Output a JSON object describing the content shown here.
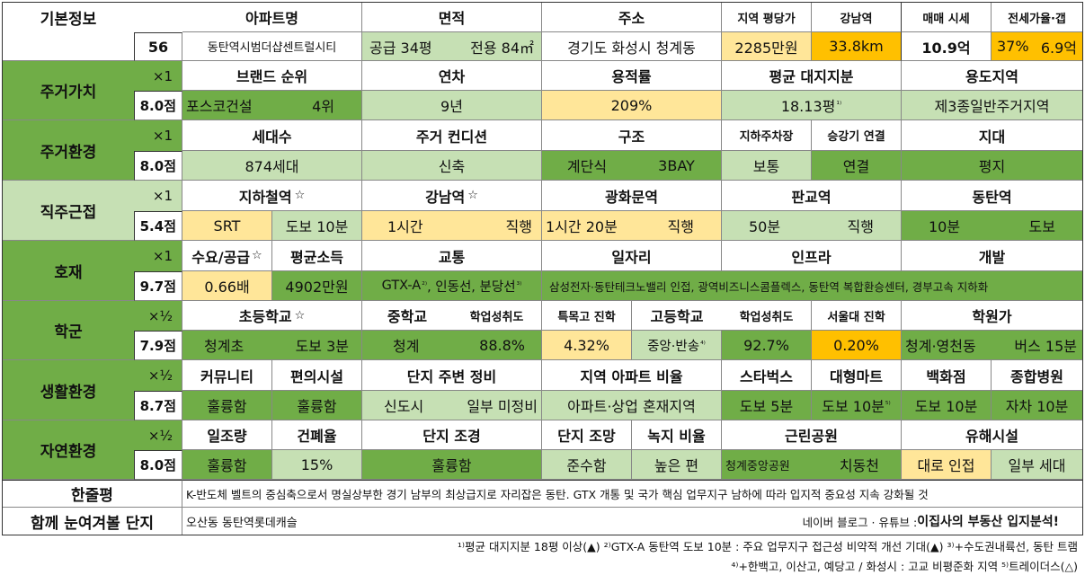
{
  "basic": {
    "label": "기본정보",
    "number": "56",
    "headers": {
      "apt_name": "아파트명",
      "area": "면적",
      "address": "주소",
      "region_price": "지역 평당가",
      "gangnam": "강남역",
      "sale": "매매 시세",
      "jeonse": "전세가율·갭"
    },
    "values": {
      "apt_name": "동탄역시범더샵센트럴시티",
      "area_supply": "공급 34평",
      "area_exclusive": "전용 84㎡",
      "address": "경기도 화성시 청계동",
      "region_price": "2285만원",
      "gangnam": "33.8km",
      "sale": "10.9억",
      "jeonse_rate": "37%",
      "gap": "6.9억"
    }
  },
  "sections": {
    "housing_value": {
      "label": "주거가치",
      "mult": "×1",
      "score": "8.0점",
      "headers": {
        "brand": "브랜드 순위",
        "age": "연차",
        "far": "용적률",
        "land": "평균 대지지분",
        "zone": "용도지역"
      },
      "values": {
        "brand_name": "포스코건설",
        "brand_rank": "4위",
        "age": "9년",
        "far": "209%",
        "land": "18.13평",
        "land_sup": "¹⁾",
        "zone": "제3종일반주거지역"
      }
    },
    "housing_env": {
      "label": "주거환경",
      "mult": "×1",
      "score": "8.0점",
      "headers": {
        "households": "세대수",
        "condition": "주거 컨디션",
        "structure": "구조",
        "parking": "지하주차장",
        "elevator": "승강기 연결",
        "terrain": "지대"
      },
      "values": {
        "households": "874세대",
        "condition": "신축",
        "structure1": "계단식",
        "structure2": "3BAY",
        "parking": "보통",
        "elevator": "연결",
        "terrain": "평지"
      }
    },
    "commute": {
      "label": "직주근접",
      "mult": "×1",
      "score": "5.4점",
      "headers": {
        "subway": "지하철역",
        "star": "☆",
        "gangnam": "강남역",
        "gwanghwamun": "광화문역",
        "pangyo": "판교역",
        "dongtan": "동탄역"
      },
      "values": {
        "subway_name": "SRT",
        "subway_walk": "도보 10분",
        "gangnam_time": "1시간",
        "gangnam_mode": "직행",
        "gwang_time": "1시간 20분",
        "gwang_mode": "직행",
        "pangyo_time": "50분",
        "pangyo_mode": "직행",
        "dongtan_time": "10분",
        "dongtan_mode": "도보"
      }
    },
    "development": {
      "label": "호재",
      "mult": "×1",
      "score": "9.7점",
      "headers": {
        "supply": "수요/공급",
        "income": "평균소득",
        "traffic": "교통",
        "jobs": "일자리",
        "infra": "인프라",
        "dev": "개발"
      },
      "values": {
        "supply": "0.66배",
        "income": "4902만원",
        "traffic1": "GTX-A",
        "traffic_sup1": "²⁾",
        "traffic2": ", 인동선, 분당선",
        "traffic_sup2": "³⁾",
        "jobs": "삼성전자·동탄테크노밸리 인접, 광역비즈니스콤플렉스, 동탄역 복합환승센터, 경부고속 지하화"
      }
    },
    "school": {
      "label": "학군",
      "mult": "×½",
      "score": "7.9점",
      "headers": {
        "elem": "초등학교",
        "mid": "중학교",
        "mid_rate": "학업성취도",
        "special": "특목고 진학",
        "high": "고등학교",
        "high_rate": "학업성취도",
        "snu": "서울대 진학",
        "academy": "학원가"
      },
      "values": {
        "elem_name": "청계초",
        "elem_walk": "도보 3분",
        "mid_name": "청계",
        "mid_rate": "88.8%",
        "special": "4.32%",
        "high": "중앙·반송",
        "high_sup": "⁴⁾",
        "high_rate": "92.7%",
        "snu": "0.20%",
        "academy_name": "청계·영천동",
        "academy_time": "버스 15분"
      }
    },
    "living": {
      "label": "생활환경",
      "mult": "×½",
      "score": "8.7점",
      "headers": {
        "community": "커뮤니티",
        "convenience": "편의시설",
        "surround": "단지 주변 정비",
        "ratio": "지역 아파트 비율",
        "starbucks": "스타벅스",
        "mart": "대형마트",
        "dept": "백화점",
        "hospital": "종합병원"
      },
      "values": {
        "community": "훌륭함",
        "convenience": "훌륭함",
        "surround1": "신도시",
        "surround2": "일부 미정비",
        "ratio": "아파트·상업 혼재지역",
        "starbucks": "도보 5분",
        "mart": "도보 10분",
        "mart_sup": "⁵⁾",
        "dept": "도보 10분",
        "hospital": "자차 10분"
      }
    },
    "nature": {
      "label": "자연환경",
      "mult": "×½",
      "score": "8.0점",
      "headers": {
        "sunlight": "일조량",
        "coverage": "건폐율",
        "landscape": "단지 조경",
        "view": "단지 조망",
        "green": "녹지 비율",
        "park": "근린공원",
        "hazard": "유해시설"
      },
      "values": {
        "sunlight": "훌륭함",
        "coverage": "15%",
        "landscape": "훌륭함",
        "view": "준수함",
        "green": "높은 편",
        "park1": "청계중앙공원",
        "park2": "치동천",
        "hazard1": "대로 인접",
        "hazard2": "일부 세대"
      }
    }
  },
  "summary": {
    "label": "한줄평",
    "text": "K-반도체 벨트의 중심축으로서 명실상부한 경기 남부의 최상급지로 자리잡은 동탄. GTX 개통 및 국가 핵심 업무지구 남하에 따라 입지적 중요성 지속 강화될 것"
  },
  "compare": {
    "label": "함께 눈여겨볼 단지",
    "text": "오산동 동탄역롯데캐슬",
    "source_prefix": "네이버 블로그 · 유튜브 : ",
    "source_name": "이집사의 부동산 입지분석!"
  },
  "footnotes": {
    "line1": "¹⁾평균 대지지분 18평 이상(▲) ²⁾GTX-A 동탄역 도보 10분 : 주요 업무지구 접근성 비약적 개선 기대(▲) ³⁾+수도권내륙선, 동탄 트램",
    "line2": "⁴⁾+한백고, 이산고, 예당고 / 화성시 : 고교 비평준화 지역 ⁵⁾트레이더스(△)"
  },
  "colors": {
    "green": "#70ad47",
    "light_green": "#c6e0b4",
    "cream": "#ffe699",
    "orange": "#ffc000"
  }
}
